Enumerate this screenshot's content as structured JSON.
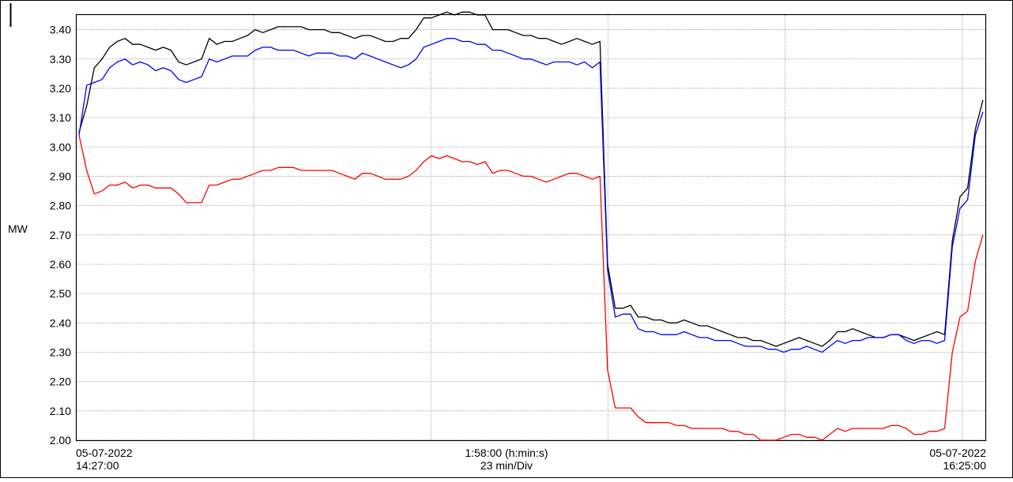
{
  "chart_data": {
    "type": "line",
    "ylabel": "MW",
    "ylim": [
      2.0,
      3.45
    ],
    "yticks": [
      "3.40",
      "3.30",
      "3.20",
      "3.10",
      "3.00",
      "2.90",
      "2.80",
      "2.70",
      "2.60",
      "2.50",
      "2.40",
      "2.30",
      "2.20",
      "2.10",
      "2.00"
    ],
    "x_axis": {
      "left_date": "05-07-2022",
      "left_time": "14:27:00",
      "center_span": "1:58:00 (h:min:s)",
      "center_div": "23 min/Div",
      "right_date": "05-07-2022",
      "right_time": "16:25:00"
    },
    "grid": true,
    "series": [
      {
        "color": "#000000",
        "values": [
          3.05,
          3.14,
          3.27,
          3.3,
          3.34,
          3.36,
          3.37,
          3.35,
          3.35,
          3.34,
          3.33,
          3.34,
          3.33,
          3.29,
          3.28,
          3.29,
          3.3,
          3.37,
          3.35,
          3.36,
          3.36,
          3.37,
          3.38,
          3.4,
          3.39,
          3.4,
          3.41,
          3.41,
          3.41,
          3.41,
          3.4,
          3.4,
          3.4,
          3.39,
          3.39,
          3.38,
          3.37,
          3.38,
          3.38,
          3.37,
          3.36,
          3.36,
          3.37,
          3.37,
          3.4,
          3.44,
          3.44,
          3.45,
          3.46,
          3.45,
          3.46,
          3.46,
          3.45,
          3.45,
          3.4,
          3.4,
          3.4,
          3.39,
          3.38,
          3.38,
          3.37,
          3.37,
          3.36,
          3.35,
          3.36,
          3.37,
          3.36,
          3.35,
          3.36,
          2.6,
          2.45,
          2.45,
          2.46,
          2.42,
          2.42,
          2.41,
          2.41,
          2.4,
          2.4,
          2.41,
          2.4,
          2.39,
          2.39,
          2.38,
          2.37,
          2.36,
          2.35,
          2.35,
          2.34,
          2.34,
          2.33,
          2.32,
          2.33,
          2.34,
          2.35,
          2.34,
          2.33,
          2.32,
          2.34,
          2.37,
          2.37,
          2.38,
          2.37,
          2.36,
          2.35,
          2.35,
          2.36,
          2.36,
          2.35,
          2.34,
          2.35,
          2.36,
          2.37,
          2.36,
          2.68,
          2.83,
          2.86,
          3.06,
          3.16
        ]
      },
      {
        "color": "#0000ff",
        "values": [
          3.04,
          3.21,
          3.22,
          3.23,
          3.27,
          3.29,
          3.3,
          3.28,
          3.29,
          3.28,
          3.26,
          3.27,
          3.26,
          3.23,
          3.22,
          3.23,
          3.24,
          3.3,
          3.29,
          3.3,
          3.31,
          3.31,
          3.31,
          3.33,
          3.34,
          3.34,
          3.33,
          3.33,
          3.33,
          3.32,
          3.31,
          3.32,
          3.32,
          3.32,
          3.31,
          3.31,
          3.3,
          3.32,
          3.31,
          3.3,
          3.29,
          3.28,
          3.27,
          3.28,
          3.3,
          3.34,
          3.35,
          3.36,
          3.37,
          3.37,
          3.36,
          3.36,
          3.35,
          3.35,
          3.33,
          3.33,
          3.32,
          3.31,
          3.3,
          3.3,
          3.29,
          3.28,
          3.29,
          3.29,
          3.29,
          3.28,
          3.29,
          3.27,
          3.29,
          2.58,
          2.42,
          2.43,
          2.43,
          2.38,
          2.37,
          2.37,
          2.36,
          2.36,
          2.36,
          2.37,
          2.36,
          2.35,
          2.35,
          2.34,
          2.34,
          2.34,
          2.33,
          2.32,
          2.32,
          2.32,
          2.31,
          2.31,
          2.3,
          2.31,
          2.31,
          2.32,
          2.31,
          2.3,
          2.32,
          2.34,
          2.33,
          2.34,
          2.34,
          2.35,
          2.35,
          2.35,
          2.36,
          2.36,
          2.34,
          2.33,
          2.34,
          2.34,
          2.33,
          2.34,
          2.66,
          2.79,
          2.82,
          3.04,
          3.12
        ]
      },
      {
        "color": "#ff0000",
        "values": [
          3.04,
          2.92,
          2.84,
          2.85,
          2.87,
          2.87,
          2.88,
          2.86,
          2.87,
          2.87,
          2.86,
          2.86,
          2.86,
          2.84,
          2.81,
          2.81,
          2.81,
          2.87,
          2.87,
          2.88,
          2.89,
          2.89,
          2.9,
          2.91,
          2.92,
          2.92,
          2.93,
          2.93,
          2.93,
          2.92,
          2.92,
          2.92,
          2.92,
          2.92,
          2.91,
          2.9,
          2.89,
          2.91,
          2.91,
          2.9,
          2.89,
          2.89,
          2.89,
          2.9,
          2.92,
          2.95,
          2.97,
          2.96,
          2.97,
          2.96,
          2.95,
          2.95,
          2.94,
          2.95,
          2.91,
          2.92,
          2.92,
          2.91,
          2.9,
          2.9,
          2.89,
          2.88,
          2.89,
          2.9,
          2.91,
          2.91,
          2.9,
          2.89,
          2.9,
          2.24,
          2.11,
          2.11,
          2.11,
          2.08,
          2.06,
          2.06,
          2.06,
          2.06,
          2.05,
          2.05,
          2.04,
          2.04,
          2.04,
          2.04,
          2.04,
          2.03,
          2.03,
          2.02,
          2.02,
          2.0,
          2.0,
          2.0,
          2.01,
          2.02,
          2.02,
          2.01,
          2.01,
          2.0,
          2.02,
          2.04,
          2.03,
          2.04,
          2.04,
          2.04,
          2.04,
          2.04,
          2.05,
          2.05,
          2.04,
          2.02,
          2.02,
          2.03,
          2.03,
          2.04,
          2.3,
          2.42,
          2.44,
          2.61,
          2.7
        ]
      }
    ]
  }
}
